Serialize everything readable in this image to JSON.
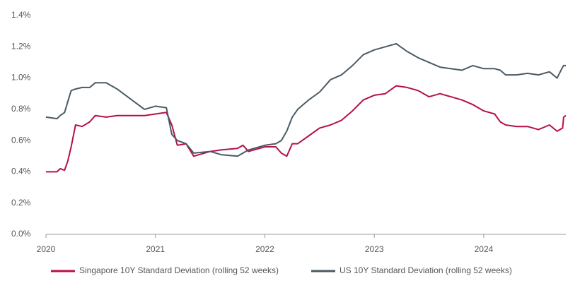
{
  "chart_data": {
    "type": "line",
    "x": [
      2020.0,
      2020.1,
      2020.13,
      2020.17,
      2020.2,
      2020.23,
      2020.27,
      2020.33,
      2020.4,
      2020.45,
      2020.55,
      2020.65,
      2020.9,
      2021.0,
      2021.1,
      2021.15,
      2021.2,
      2021.28,
      2021.35,
      2021.5,
      2021.6,
      2021.75,
      2021.8,
      2021.85,
      2022.0,
      2022.1,
      2022.15,
      2022.2,
      2022.25,
      2022.3,
      2022.4,
      2022.5,
      2022.6,
      2022.7,
      2022.8,
      2022.9,
      2023.0,
      2023.1,
      2023.2,
      2023.3,
      2023.4,
      2023.5,
      2023.6,
      2023.7,
      2023.8,
      2023.9,
      2024.0,
      2024.1,
      2024.15,
      2024.2,
      2024.3,
      2024.4,
      2024.5,
      2024.6,
      2024.67,
      2024.72,
      2024.73,
      2024.75
    ],
    "series": [
      {
        "name": "Singapore 10Y Standard Deviation (rolling 52 weeks)",
        "color": "#b5104a",
        "values": [
          0.4,
          0.4,
          0.42,
          0.41,
          0.47,
          0.56,
          0.7,
          0.69,
          0.72,
          0.76,
          0.75,
          0.76,
          0.76,
          0.77,
          0.78,
          0.7,
          0.57,
          0.58,
          0.5,
          0.53,
          0.54,
          0.55,
          0.57,
          0.53,
          0.56,
          0.56,
          0.52,
          0.5,
          0.58,
          0.58,
          0.63,
          0.68,
          0.7,
          0.73,
          0.79,
          0.86,
          0.89,
          0.9,
          0.95,
          0.94,
          0.92,
          0.88,
          0.9,
          0.88,
          0.86,
          0.83,
          0.79,
          0.77,
          0.72,
          0.7,
          0.69,
          0.69,
          0.67,
          0.7,
          0.66,
          0.68,
          0.75,
          0.76
        ]
      },
      {
        "name": "US 10Y Standard Deviation (rolling 52 weeks)",
        "color": "#4a5a64",
        "values": [
          0.75,
          0.74,
          0.76,
          0.78,
          0.85,
          0.92,
          0.93,
          0.94,
          0.94,
          0.97,
          0.97,
          0.93,
          0.8,
          0.82,
          0.81,
          0.64,
          0.6,
          0.58,
          0.52,
          0.53,
          0.51,
          0.5,
          0.52,
          0.54,
          0.57,
          0.58,
          0.6,
          0.66,
          0.75,
          0.8,
          0.86,
          0.91,
          0.99,
          1.02,
          1.08,
          1.15,
          1.18,
          1.2,
          1.22,
          1.17,
          1.13,
          1.1,
          1.07,
          1.06,
          1.05,
          1.08,
          1.06,
          1.06,
          1.05,
          1.02,
          1.02,
          1.03,
          1.02,
          1.04,
          1.0,
          1.07,
          1.08,
          1.08
        ]
      }
    ],
    "xlim": [
      2020,
      2024.75
    ],
    "xticks": [
      2020,
      2021,
      2022,
      2023,
      2024
    ],
    "ylim": [
      0,
      1.4
    ],
    "yticks": [
      {
        "value": 0,
        "label": "0.0%"
      },
      {
        "value": 0.2,
        "label": "0.2%"
      },
      {
        "value": 0.4,
        "label": "0.4%"
      },
      {
        "value": 0.6,
        "label": "0.6%"
      },
      {
        "value": 0.8,
        "label": "0.8%"
      },
      {
        "value": 1.0,
        "label": "1.0%"
      },
      {
        "value": 1.2,
        "label": "1.2%"
      },
      {
        "value": 1.4,
        "label": "1.4%"
      }
    ],
    "legend": "bottom"
  }
}
